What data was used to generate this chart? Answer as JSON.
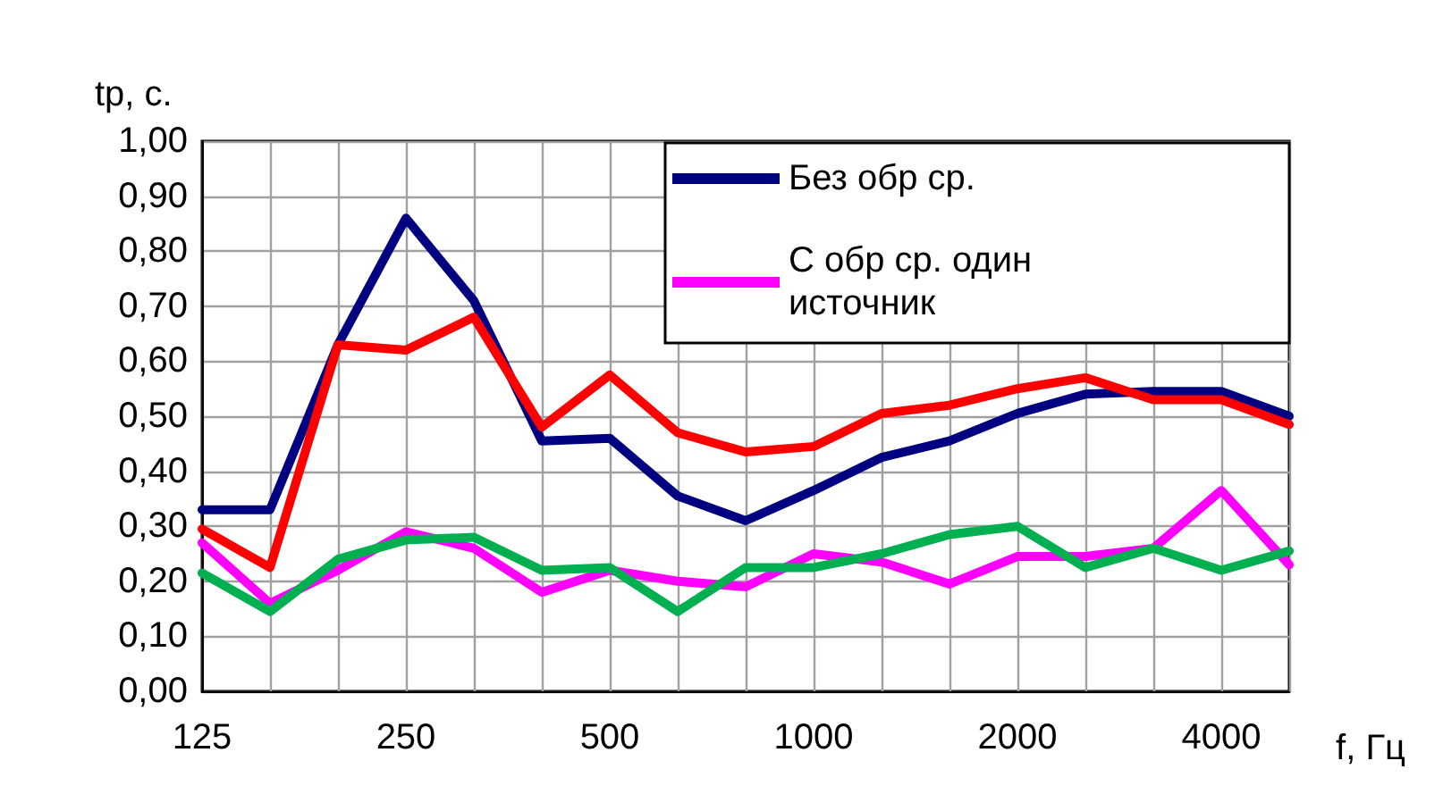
{
  "chart_data": {
    "type": "line",
    "ylabel": "tp, с.",
    "xlabel": "f, Гц",
    "categories": [
      "125",
      null,
      null,
      "250",
      null,
      null,
      "500",
      null,
      null,
      "1000",
      null,
      null,
      "2000",
      null,
      null,
      "4000",
      null
    ],
    "ylim": [
      0,
      1
    ],
    "yticks": [
      {
        "value": 0,
        "label": "0,00"
      },
      {
        "value": 0.1,
        "label": "0,10"
      },
      {
        "value": 0.2,
        "label": "0,20"
      },
      {
        "value": 0.3,
        "label": "0,30"
      },
      {
        "value": 0.4,
        "label": "0,40"
      },
      {
        "value": 0.5,
        "label": "0,50"
      },
      {
        "value": 0.6,
        "label": "0,60"
      },
      {
        "value": 0.7,
        "label": "0,70"
      },
      {
        "value": 0.8,
        "label": "0,80"
      },
      {
        "value": 0.9,
        "label": "0,90"
      },
      {
        "value": 1,
        "label": "1,00"
      }
    ],
    "grid": true,
    "legend": "top right",
    "marker": "none",
    "line_style": "solid",
    "series": [
      {
        "name": "Без обр ср.",
        "color": "#000080",
        "values": [
          0.33,
          0.33,
          0.63,
          0.86,
          0.71,
          0.455,
          0.46,
          0.355,
          0.31,
          0.365,
          0.425,
          0.455,
          0.505,
          0.54,
          0.545,
          0.545,
          0.5
        ]
      },
      {
        "color": "#ff0000",
        "values": [
          0.295,
          0.225,
          0.63,
          0.62,
          0.68,
          0.48,
          0.575,
          0.47,
          0.435,
          0.445,
          0.505,
          0.52,
          0.55,
          0.57,
          0.53,
          0.53,
          0.485
        ]
      },
      {
        "name": "С обр ср. один источник",
        "color": "#ff00ff",
        "values": [
          0.27,
          0.16,
          0.22,
          0.29,
          0.26,
          0.18,
          0.22,
          0.2,
          0.19,
          0.25,
          0.235,
          0.195,
          0.245,
          0.245,
          0.26,
          0.365,
          0.23
        ]
      },
      {
        "color": "#00b050",
        "values": [
          0.215,
          0.145,
          0.24,
          0.275,
          0.28,
          0.22,
          0.225,
          0.145,
          0.225,
          0.225,
          0.25,
          0.285,
          0.3,
          0.225,
          0.26,
          0.22,
          0.255
        ]
      }
    ]
  }
}
